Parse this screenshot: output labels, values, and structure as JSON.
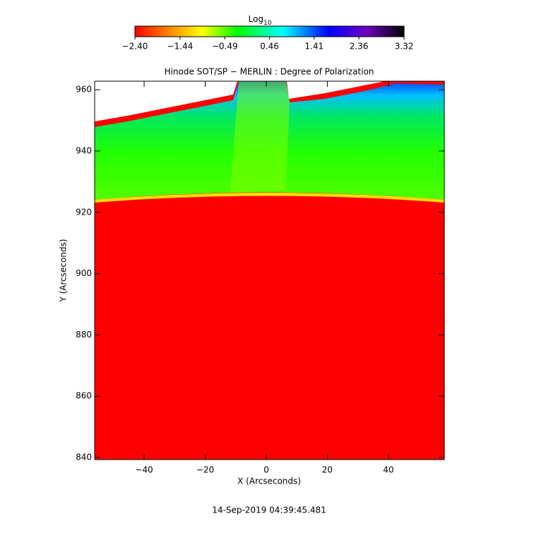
{
  "chart_data": {
    "type": "heatmap",
    "title": "Hinode SOT/SP − MERLIN : Degree of Polarization",
    "x_label": "X (Arcseconds)",
    "y_label": "Y (Arcseconds)",
    "xlim": [
      -56.2,
      58.3
    ],
    "xticks": [
      {
        "value": -40,
        "label": "−40"
      },
      {
        "value": -20,
        "label": "−20"
      },
      0,
      20,
      40
    ],
    "ylim": [
      839.3,
      962.8
    ],
    "yticks": [
      840,
      860,
      880,
      900,
      920,
      940,
      960
    ],
    "colorbar": {
      "label": "Log",
      "label_sub": "10",
      "lim": [
        -2.4,
        3.32
      ],
      "ticks": [
        {
          "value": -2.4,
          "label": "−2.40"
        },
        {
          "value": -1.44,
          "label": "−1.44"
        },
        {
          "value": -0.49,
          "label": "−0.49"
        },
        {
          "value": 0.46,
          "label": "0.46"
        },
        {
          "value": 1.41,
          "label": "1.41"
        },
        {
          "value": 2.36,
          "label": "2.36"
        },
        {
          "value": 3.32,
          "label": "3.32"
        }
      ]
    },
    "timestamp": "14-Sep-2019 04:39:45.481"
  }
}
